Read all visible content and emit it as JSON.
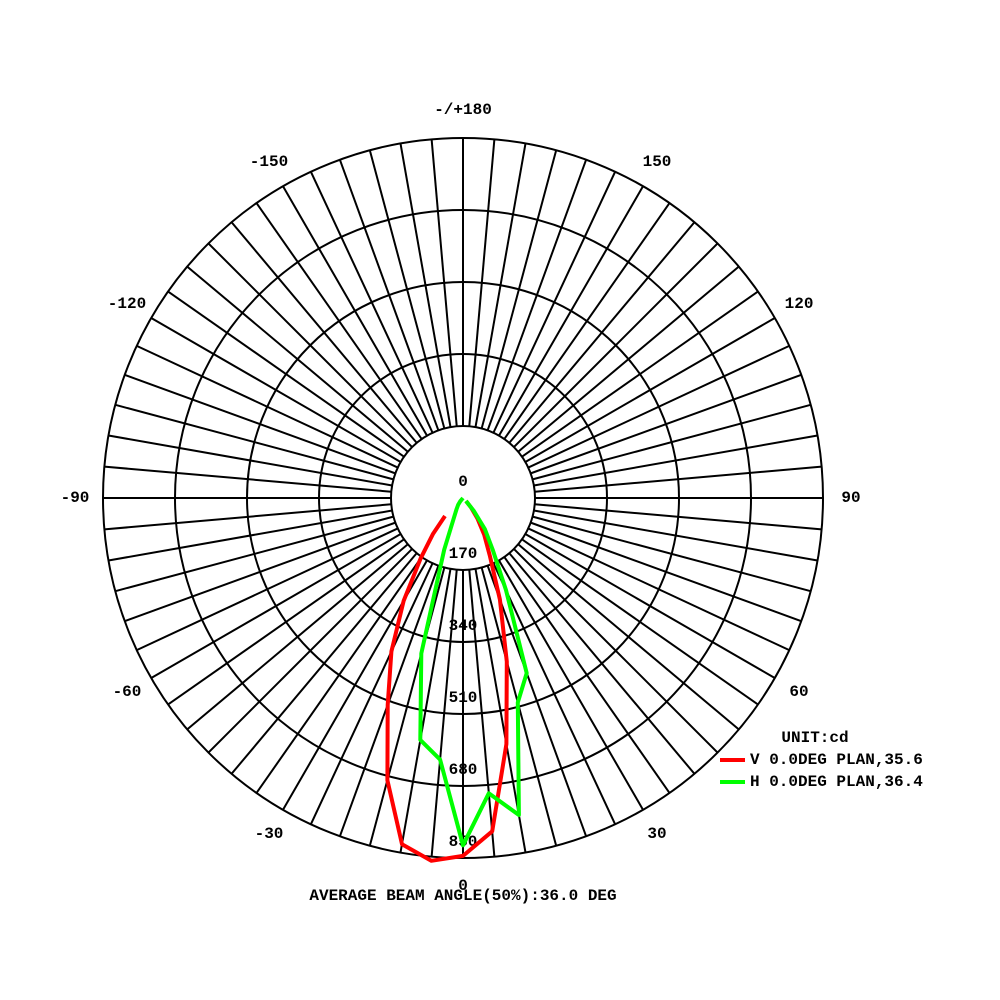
{
  "chart_data": {
    "type": "polar",
    "theta": [
      -45,
      -40,
      -35,
      -30,
      -25,
      -20,
      -15,
      -10,
      -5,
      0,
      5,
      10,
      15,
      20,
      25,
      30,
      35,
      40,
      45
    ],
    "series": [
      {
        "name": "V 0.0DEG PLAN,35.6",
        "color": "#ff0000",
        "values": [
          60,
          110,
          175,
          280,
          400,
          520,
          690,
          830,
          860,
          845,
          790,
          590,
          400,
          255,
          150,
          100,
          60,
          30,
          10
        ]
      },
      {
        "name": "H 0.0DEG PLAN,36.4",
        "color": "#00ff00",
        "values": [
          0,
          10,
          20,
          30,
          50,
          130,
          380,
          580,
          620,
          820,
          700,
          760,
          500,
          440,
          240,
          140,
          90,
          40,
          10
        ]
      }
    ],
    "rlim": [
      0,
      850
    ],
    "rticks": [
      0,
      170,
      340,
      510,
      680,
      850
    ],
    "thetaticks": [
      0,
      30,
      60,
      90,
      120,
      150,
      {
        "value": 180,
        "label": "-/+180"
      },
      -150,
      -120,
      -90,
      -60,
      -30
    ],
    "theta_grid_step": 5,
    "legend_title": "UNIT:cd",
    "footer": "AVERAGE BEAM ANGLE(50%):36.0 DEG"
  }
}
